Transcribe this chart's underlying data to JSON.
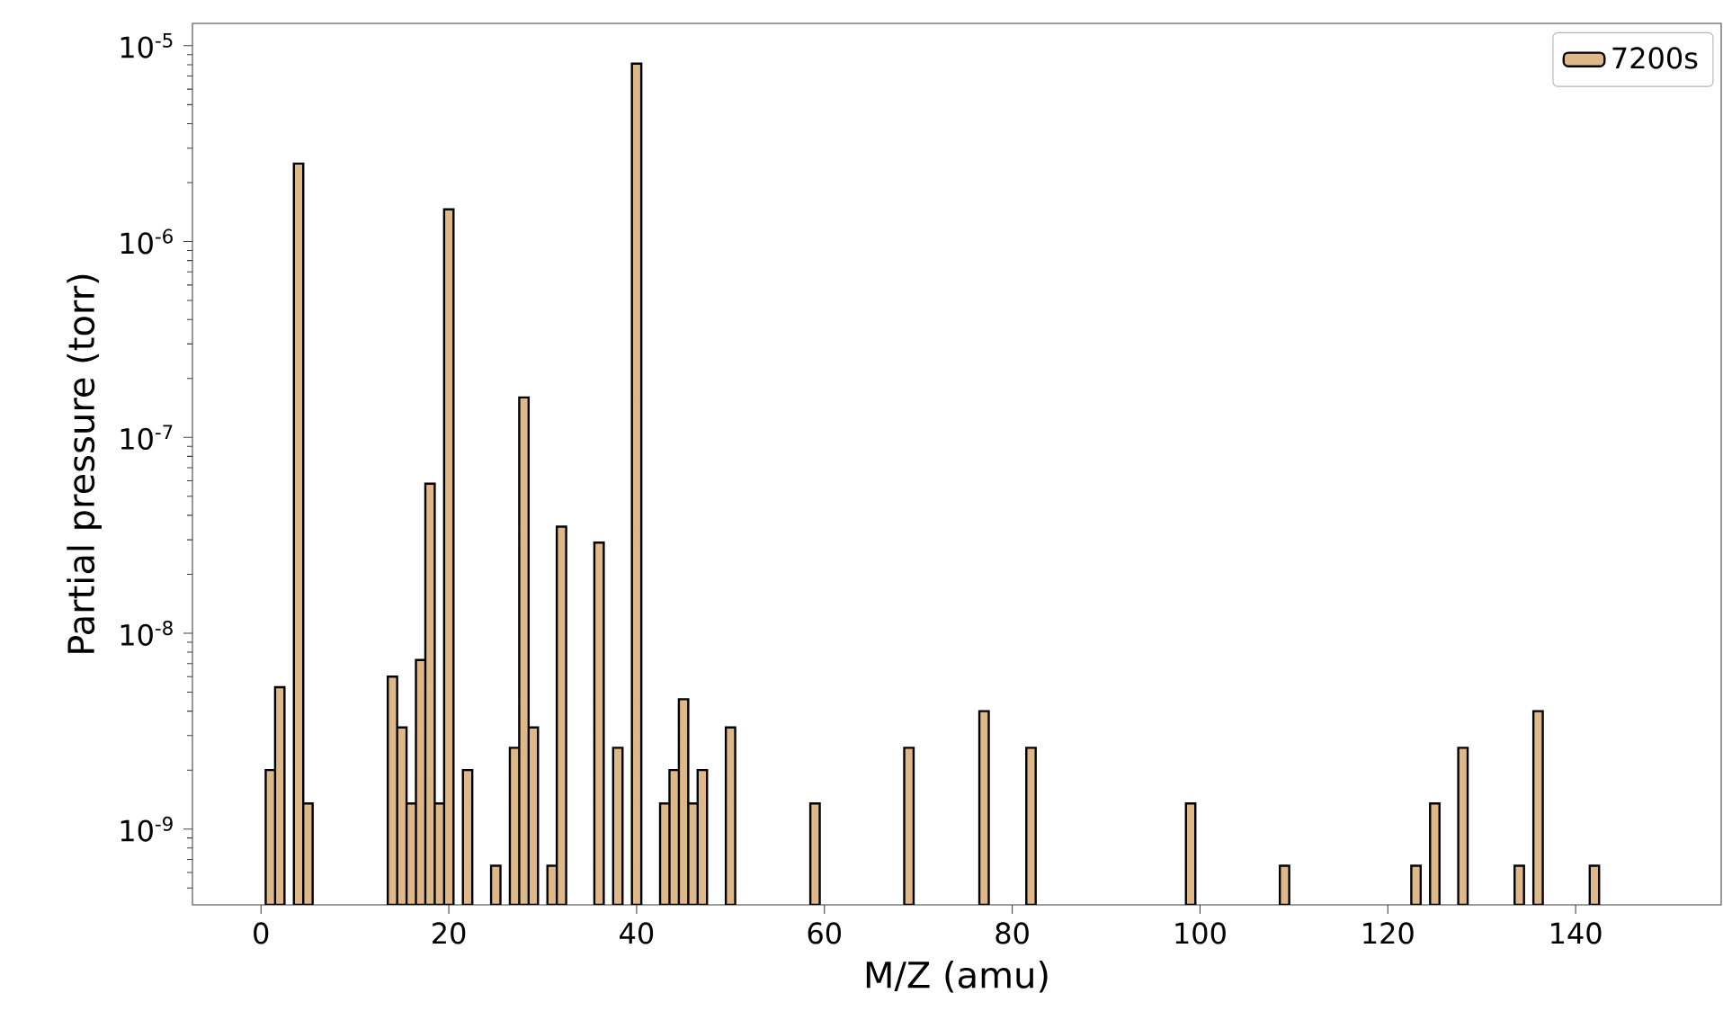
{
  "chart_data": {
    "type": "bar",
    "xlabel": "M/Z (amu)",
    "ylabel": "Partial pressure (torr)",
    "log": "y",
    "legend": "top right",
    "x": [
      1,
      2,
      4,
      5,
      14,
      15,
      16,
      17,
      18,
      19,
      20,
      22,
      25,
      27,
      28,
      29,
      31,
      32,
      36,
      38,
      40,
      43,
      44,
      45,
      46,
      47,
      50,
      59,
      69,
      77,
      82,
      99,
      109,
      123,
      125,
      128,
      134,
      136,
      142
    ],
    "series": [
      {
        "name": "7200s",
        "color": "#deb887",
        "values": [
          2e-09,
          5.3e-09,
          2.5e-06,
          1.35e-09,
          6e-09,
          3.3e-09,
          1.35e-09,
          7.3e-09,
          5.8e-08,
          1.35e-09,
          1.46e-06,
          2e-09,
          6.5e-10,
          2.6e-09,
          1.6e-07,
          3.3e-09,
          6.5e-10,
          3.5e-08,
          2.9e-08,
          2.6e-09,
          8.1e-06,
          1.35e-09,
          2e-09,
          4.6e-09,
          1.35e-09,
          2e-09,
          3.3e-09,
          1.35e-09,
          2.6e-09,
          4e-09,
          2.6e-09,
          1.35e-09,
          6.5e-10,
          6.5e-10,
          1.35e-09,
          2.6e-09,
          6.5e-10,
          4e-09,
          6.5e-10
        ]
      }
    ],
    "xlim": [
      -7.3,
      155.5
    ],
    "xticks": [
      0,
      20,
      40,
      60,
      80,
      100,
      120,
      140
    ],
    "ylim": [
      4.1e-10,
      1.3e-05
    ],
    "yticks": [
      {
        "value": 1e-09,
        "label": "10$^{-9}$"
      },
      {
        "value": 1e-08,
        "label": "10$^{-8}$"
      },
      {
        "value": 1e-07,
        "label": "10$^{-7}$"
      },
      {
        "value": 1e-06,
        "label": "10$^{-6}$"
      },
      {
        "value": 1e-05,
        "label": "10$^{-5}$"
      }
    ]
  }
}
